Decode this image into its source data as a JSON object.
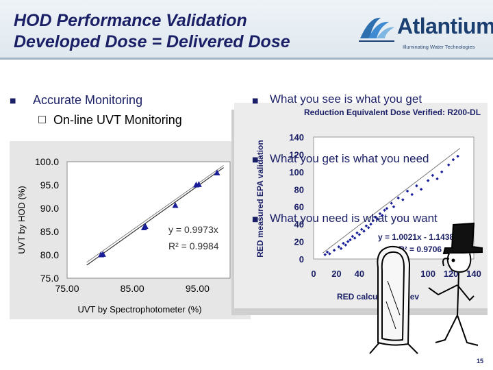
{
  "slide": {
    "title_line1": "HOD Performance Validation",
    "title_line2": "Developed Dose = Delivered Dose",
    "page_number": "15"
  },
  "logo": {
    "name": "Atlantium",
    "tagline": "Illuminating Water Technologies"
  },
  "bullets": {
    "left_main": "Accurate Monitoring",
    "left_sub": "On-line UVT Monitoring",
    "right_1": "What you see is what you get",
    "right_2": "What you get is what you need",
    "right_3": "What you need is what you want"
  },
  "colors": {
    "title": "#1a1f66",
    "logo": "#1c3f72",
    "chart_series": "#1a1f99"
  },
  "icons": [
    "bullet-square-icon",
    "checkbox-icon",
    "atlantium-logo-icon",
    "mirror-figure-icon"
  ],
  "chart_data": [
    {
      "type": "scatter",
      "title": "",
      "xlabel": "UVT by Spectrophotometer (%)",
      "ylabel": "UVT by HOD (%)",
      "xlim": [
        75,
        100
      ],
      "ylim": [
        75,
        100
      ],
      "x_ticks": [
        "75.00",
        "85.00",
        "95.00"
      ],
      "y_ticks": [
        "100.0",
        "95.0",
        "90.0",
        "85.0",
        "80.0",
        "75.0"
      ],
      "series": [
        {
          "x": [
            80.2,
            80.5,
            86.8,
            87.0,
            91.6,
            94.8,
            95.2,
            98.0
          ],
          "y": [
            80.0,
            80.1,
            85.8,
            86.1,
            90.6,
            95.0,
            95.1,
            97.6
          ]
        }
      ],
      "trendline": {
        "equation": "y = 0.9973x",
        "r2": "R² = 0.9984"
      },
      "grid": false,
      "legend": "none"
    },
    {
      "type": "scatter",
      "title": "Reduction Equivalent Dose Verified: R200-DL",
      "xlabel": "RED calculated - Rev",
      "ylabel": "RED measured EPA validation",
      "xlim": [
        0,
        140
      ],
      "ylim": [
        0,
        140
      ],
      "x_ticks": [
        "0",
        "20",
        "40",
        "60",
        "80",
        "100",
        "120",
        "140"
      ],
      "y_ticks": [
        "140",
        "120",
        "100",
        "80",
        "60",
        "40",
        "20",
        "0"
      ],
      "series": [
        {
          "x": [
            10,
            12,
            14,
            18,
            22,
            24,
            26,
            28,
            30,
            32,
            34,
            36,
            38,
            40,
            42,
            44,
            46,
            48,
            50,
            52,
            54,
            56,
            58,
            60,
            62,
            64,
            68,
            70,
            74,
            78,
            82,
            86,
            90,
            94,
            100,
            104,
            108,
            112,
            118,
            122,
            126
          ],
          "y": [
            5,
            8,
            6,
            10,
            14,
            12,
            18,
            16,
            20,
            22,
            26,
            24,
            30,
            28,
            34,
            32,
            38,
            36,
            40,
            44,
            48,
            46,
            52,
            50,
            56,
            58,
            64,
            60,
            70,
            68,
            78,
            74,
            84,
            80,
            90,
            96,
            92,
            100,
            108,
            114,
            118
          ]
        }
      ],
      "trendline": {
        "equation": "y = 1.0021x - 1.1438",
        "r2": "R² = 0.9706"
      },
      "grid": false,
      "legend": "none"
    }
  ]
}
